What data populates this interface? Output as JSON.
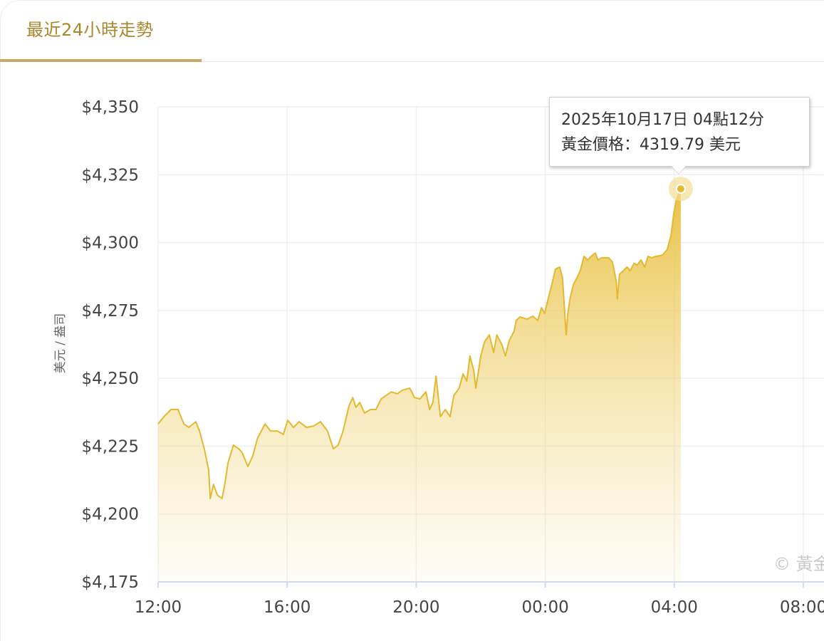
{
  "tabs": [
    {
      "label": "最近24小時走勢",
      "active": true
    }
  ],
  "colors": {
    "accent": "#a8862c",
    "line": "#e2b930",
    "fill_top": "#e8bf3a",
    "tooltip_border": "#cfcfcf"
  },
  "tooltip": {
    "line1": "2025年10月17日 04點12分",
    "line2": "黃金價格：4319.79 美元"
  },
  "watermark": "© 黃金",
  "chart_data": {
    "type": "area",
    "title": "",
    "xlabel": "",
    "ylabel": "美元 / 盎司",
    "ylim": [
      4175,
      4350
    ],
    "yticks": [
      4175,
      4200,
      4225,
      4250,
      4275,
      4300,
      4325,
      4350
    ],
    "ytick_labels": [
      "$4,175",
      "$4,200",
      "$4,225",
      "$4,250",
      "$4,275",
      "$4,300",
      "$4,325",
      "$4,350"
    ],
    "xticks": [
      "12:00",
      "16:00",
      "20:00",
      "00:00",
      "04:00",
      "08:00"
    ],
    "xlim": [
      "12:00",
      "08:00"
    ],
    "grid": true,
    "highlight": {
      "time": "04:12",
      "value": 4319.79
    },
    "points": [
      [
        "12:00",
        4233.2
      ],
      [
        "12:11",
        4235.9
      ],
      [
        "12:24",
        4238.5
      ],
      [
        "12:37",
        4238.5
      ],
      [
        "12:48",
        4233.2
      ],
      [
        "12:57",
        4231.9
      ],
      [
        "13:10",
        4234.0
      ],
      [
        "13:17",
        4230.6
      ],
      [
        "13:26",
        4224.0
      ],
      [
        "13:34",
        4216.2
      ],
      [
        "13:37",
        4205.7
      ],
      [
        "13:43",
        4210.9
      ],
      [
        "13:50",
        4207.0
      ],
      [
        "13:59",
        4205.7
      ],
      [
        "14:04",
        4210.9
      ],
      [
        "14:10",
        4218.8
      ],
      [
        "14:20",
        4225.4
      ],
      [
        "14:30",
        4224.0
      ],
      [
        "14:36",
        4222.7
      ],
      [
        "14:47",
        4217.5
      ],
      [
        "14:56",
        4221.4
      ],
      [
        "15:05",
        4228.0
      ],
      [
        "15:19",
        4233.2
      ],
      [
        "15:29",
        4230.6
      ],
      [
        "15:42",
        4230.6
      ],
      [
        "15:53",
        4229.3
      ],
      [
        "16:01",
        4234.5
      ],
      [
        "16:12",
        4231.9
      ],
      [
        "16:22",
        4234.0
      ],
      [
        "16:36",
        4231.9
      ],
      [
        "16:49",
        4232.4
      ],
      [
        "17:02",
        4234.0
      ],
      [
        "17:15",
        4230.6
      ],
      [
        "17:26",
        4224.0
      ],
      [
        "17:35",
        4225.4
      ],
      [
        "17:44",
        4230.6
      ],
      [
        "17:55",
        4239.8
      ],
      [
        "18:02",
        4242.9
      ],
      [
        "18:08",
        4239.3
      ],
      [
        "18:15",
        4241.1
      ],
      [
        "18:24",
        4237.2
      ],
      [
        "18:35",
        4238.5
      ],
      [
        "18:45",
        4238.5
      ],
      [
        "18:55",
        4242.4
      ],
      [
        "19:04",
        4243.7
      ],
      [
        "19:14",
        4245.0
      ],
      [
        "19:25",
        4244.3
      ],
      [
        "19:34",
        4245.6
      ],
      [
        "19:48",
        4246.4
      ],
      [
        "19:57",
        4242.9
      ],
      [
        "20:07",
        4242.4
      ],
      [
        "20:18",
        4245.0
      ],
      [
        "20:25",
        4238.5
      ],
      [
        "20:31",
        4241.1
      ],
      [
        "20:37",
        4250.8
      ],
      [
        "20:45",
        4235.9
      ],
      [
        "20:54",
        4238.5
      ],
      [
        "21:03",
        4235.9
      ],
      [
        "21:10",
        4243.7
      ],
      [
        "21:20",
        4246.4
      ],
      [
        "21:27",
        4251.6
      ],
      [
        "21:34",
        4249.0
      ],
      [
        "21:40",
        4258.2
      ],
      [
        "21:47",
        4252.9
      ],
      [
        "21:51",
        4246.4
      ],
      [
        "22:00",
        4258.2
      ],
      [
        "22:07",
        4263.4
      ],
      [
        "22:16",
        4266.0
      ],
      [
        "22:24",
        4259.5
      ],
      [
        "22:30",
        4266.0
      ],
      [
        "22:40",
        4262.1
      ],
      [
        "22:46",
        4258.2
      ],
      [
        "22:53",
        4263.9
      ],
      [
        "23:02",
        4267.3
      ],
      [
        "23:06",
        4271.3
      ],
      [
        "23:13",
        4272.6
      ],
      [
        "23:26",
        4271.8
      ],
      [
        "23:37",
        4272.9
      ],
      [
        "23:46",
        4271.3
      ],
      [
        "23:53",
        4276.0
      ],
      [
        "23:59",
        4273.9
      ],
      [
        "00:06",
        4279.7
      ],
      [
        "00:12",
        4284.4
      ],
      [
        "00:19",
        4290.2
      ],
      [
        "00:27",
        4291.0
      ],
      [
        "00:32",
        4287.0
      ],
      [
        "00:39",
        4266.0
      ],
      [
        "00:42",
        4273.9
      ],
      [
        "00:46",
        4279.2
      ],
      [
        "00:52",
        4284.4
      ],
      [
        "00:59",
        4287.0
      ],
      [
        "01:05",
        4289.6
      ],
      [
        "01:12",
        4294.9
      ],
      [
        "01:19",
        4293.6
      ],
      [
        "01:25",
        4294.9
      ],
      [
        "01:33",
        4296.2
      ],
      [
        "01:38",
        4293.6
      ],
      [
        "01:45",
        4294.4
      ],
      [
        "01:58",
        4294.4
      ],
      [
        "02:05",
        4292.8
      ],
      [
        "02:12",
        4285.7
      ],
      [
        "02:14",
        4279.2
      ],
      [
        "02:18",
        4288.3
      ],
      [
        "02:25",
        4289.6
      ],
      [
        "02:32",
        4291.0
      ],
      [
        "02:38",
        4289.6
      ],
      [
        "02:45",
        4292.3
      ],
      [
        "02:51",
        4291.7
      ],
      [
        "02:58",
        4293.6
      ],
      [
        "03:05",
        4291.0
      ],
      [
        "03:11",
        4294.9
      ],
      [
        "03:18",
        4294.4
      ],
      [
        "03:25",
        4294.9
      ],
      [
        "03:38",
        4295.4
      ],
      [
        "03:47",
        4297.5
      ],
      [
        "03:54",
        4302.8
      ],
      [
        "03:59",
        4310.6
      ],
      [
        "04:04",
        4315.9
      ],
      [
        "04:12",
        4319.79
      ]
    ]
  }
}
